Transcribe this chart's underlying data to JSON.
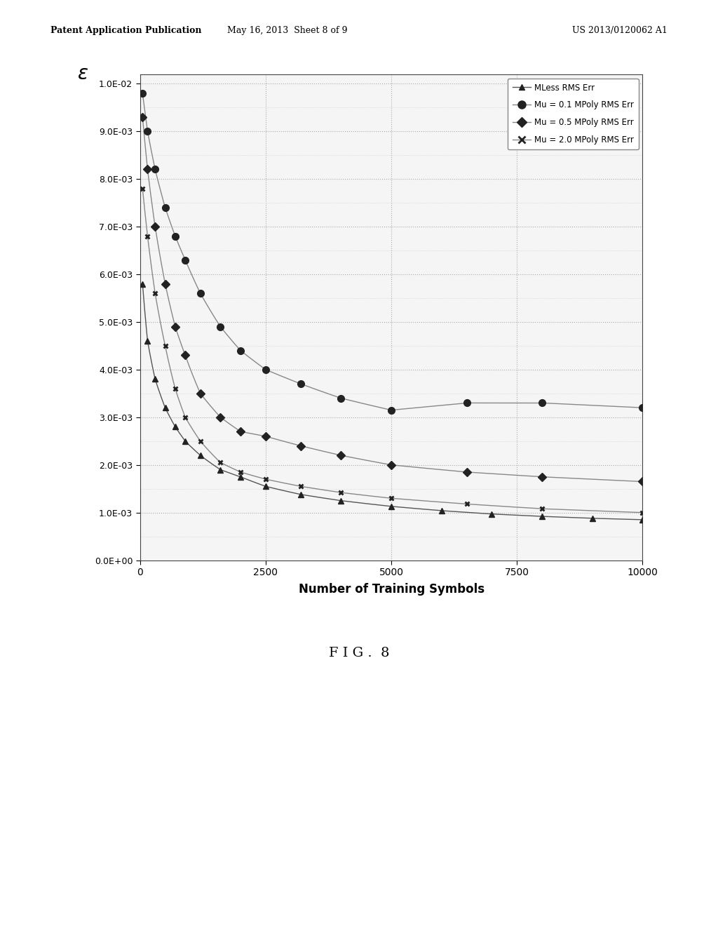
{
  "title": "",
  "xlabel": "Number of Training Symbols",
  "ylabel": "ε",
  "xlim": [
    0,
    10000
  ],
  "ylim": [
    0.0,
    0.0102
  ],
  "xticks": [
    0,
    2500,
    5000,
    7500,
    10000
  ],
  "yticks": [
    0.0,
    0.001,
    0.002,
    0.003,
    0.004,
    0.005,
    0.006,
    0.007,
    0.008,
    0.009,
    0.01
  ],
  "ytick_labels": [
    "0.0E+00",
    "1.0E-03",
    "2.0E-03",
    "3.0E-03",
    "4.0E-03",
    "5.0E-03",
    "6.0E-03",
    "7.0E-03",
    "8.0E-03",
    "9.0E-03",
    "1.0E-02"
  ],
  "background_color": "#f5f5f5",
  "series": [
    {
      "label": "MLess RMS Err",
      "marker": "^",
      "color": "#222222",
      "linecolor": "#555555",
      "A": 0.006,
      "k": 0.0007,
      "c": 0.00075,
      "x_markers": [
        50,
        150,
        300,
        500,
        700,
        900,
        1200,
        1600,
        2000,
        2500,
        3200,
        4000,
        5000,
        6000,
        7000,
        8000,
        9000,
        10000
      ],
      "y_markers": [
        0.0058,
        0.0046,
        0.0038,
        0.0032,
        0.0028,
        0.0025,
        0.0022,
        0.0019,
        0.00175,
        0.00155,
        0.00138,
        0.00125,
        0.00113,
        0.00104,
        0.00097,
        0.00092,
        0.00088,
        0.00085
      ]
    },
    {
      "label": "Mu = 0.1 MPoly RMS Err",
      "marker": "o",
      "color": "#222222",
      "linecolor": "#888888",
      "A": 0.0098,
      "k": 0.00025,
      "c": 0.003,
      "x_markers": [
        50,
        150,
        300,
        500,
        700,
        900,
        1200,
        1600,
        2000,
        2500,
        3200,
        4000,
        5000,
        6500,
        8000,
        10000
      ],
      "y_markers": [
        0.0098,
        0.009,
        0.0082,
        0.0074,
        0.0068,
        0.0063,
        0.0056,
        0.0049,
        0.0044,
        0.004,
        0.0037,
        0.0034,
        0.00315,
        0.0033,
        0.0033,
        0.0032
      ]
    },
    {
      "label": "Mu = 0.5 MPoly RMS Err",
      "marker": "D",
      "color": "#222222",
      "linecolor": "#888888",
      "A": 0.0095,
      "k": 0.0008,
      "c": 0.0015,
      "x_markers": [
        50,
        150,
        300,
        500,
        700,
        900,
        1200,
        1600,
        2000,
        2500,
        3200,
        4000,
        5000,
        6500,
        8000,
        10000
      ],
      "y_markers": [
        0.0093,
        0.0082,
        0.007,
        0.0058,
        0.0049,
        0.0043,
        0.0035,
        0.003,
        0.0027,
        0.0026,
        0.0024,
        0.0022,
        0.002,
        0.00185,
        0.00175,
        0.00165
      ]
    },
    {
      "label": "Mu = 2.0 MPoly RMS Err",
      "marker": "x",
      "color": "#222222",
      "linecolor": "#888888",
      "A": 0.0082,
      "k": 0.0015,
      "c": 0.001,
      "x_markers": [
        50,
        150,
        300,
        500,
        700,
        900,
        1200,
        1600,
        2000,
        2500,
        3200,
        4000,
        5000,
        6500,
        8000,
        10000
      ],
      "y_markers": [
        0.0078,
        0.0068,
        0.0056,
        0.0045,
        0.0036,
        0.003,
        0.0025,
        0.00205,
        0.00185,
        0.0017,
        0.00155,
        0.00142,
        0.0013,
        0.00118,
        0.00108,
        0.001
      ]
    }
  ],
  "patent_header_left": "Patent Application Publication",
  "patent_header_mid": "May 16, 2013  Sheet 8 of 9",
  "patent_header_right": "US 2013/0120062 A1",
  "figure_label": "F I G .  8",
  "grid_color": "#aaaaaa",
  "minor_grid_color": "#cccccc"
}
